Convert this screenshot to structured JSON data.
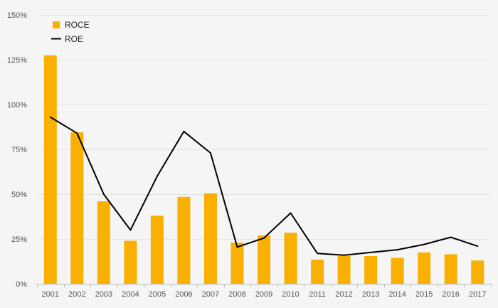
{
  "chart_data": {
    "type": "bar",
    "title": "",
    "xlabel": "",
    "ylabel": "",
    "categories": [
      "2001",
      "2002",
      "2003",
      "2004",
      "2005",
      "2006",
      "2007",
      "2008",
      "2009",
      "2010",
      "2011",
      "2012",
      "2013",
      "2014",
      "2015",
      "2016",
      "2017"
    ],
    "series": [
      {
        "name": "ROCE",
        "type": "bar",
        "color": "#f9b000",
        "values": [
          127.5,
          84.5,
          46,
          24,
          38,
          48.5,
          50.5,
          23,
          27,
          28.5,
          13.5,
          15.5,
          15.5,
          14.5,
          17.5,
          16.5,
          13
        ]
      },
      {
        "name": "ROE",
        "type": "line",
        "color": "#000000",
        "values": [
          93,
          84,
          50,
          30,
          60,
          85,
          73,
          20.5,
          25.5,
          39.5,
          17,
          16,
          17.5,
          19,
          22,
          26,
          21
        ]
      }
    ],
    "ylim": [
      0,
      150
    ],
    "yticks": [
      0,
      25,
      50,
      75,
      100,
      125,
      150
    ],
    "ytick_labels": [
      "0%",
      "25%",
      "50%",
      "75%",
      "100%",
      "125%",
      "150%"
    ],
    "grid": true,
    "legend_position": "top-left"
  }
}
